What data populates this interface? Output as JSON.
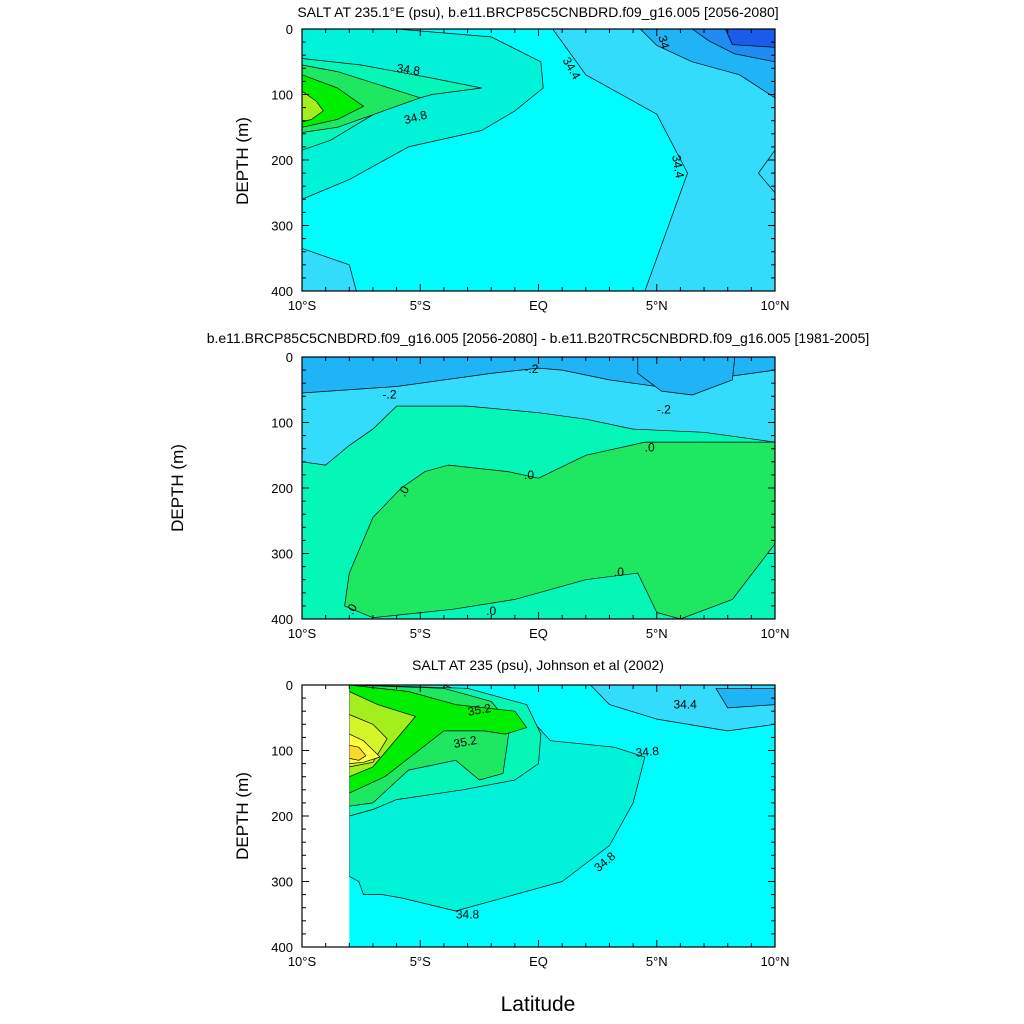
{
  "figure": {
    "shared_xlabel": "Latitude"
  },
  "colors": {
    "white_mask": "#ffffff",
    "deep_blue": "#1a5bea",
    "blue": "#1e8cf0",
    "sky": "#1fb4f5",
    "light_cyan": "#33dcfb",
    "cyan": "#00fdfd",
    "aqua": "#00f3d8",
    "mint": "#05f7b8",
    "green": "#1ee861",
    "bright_green": "#00ef00",
    "lime": "#a3ee1d",
    "yellow_green": "#d4f52a",
    "yellow": "#ffff3a",
    "gold": "#fbd928",
    "contour_line": "#000000"
  },
  "chart_data": [
    {
      "type": "contour",
      "title": "SALT AT 235.1°E (psu), b.e11.BRCP85C5CNBDRD.f09_g16.005 [2056-2080]",
      "xlabel": "",
      "ylabel": "DEPTH (m)",
      "xlim": [
        -10,
        10
      ],
      "ylim": [
        400,
        0
      ],
      "x_ticks": [
        -10,
        -5,
        0,
        5,
        10
      ],
      "x_tick_labels": [
        "10°S",
        "5°S",
        "EQ",
        "5°N",
        "10°N"
      ],
      "y_ticks": [
        0,
        100,
        200,
        300,
        400
      ],
      "y_tick_labels": [
        "0",
        "100",
        "200",
        "300",
        "400"
      ],
      "background_level": "cyan",
      "regions": [
        {
          "level": "light_cyan",
          "points": [
            [
              0.6,
              0
            ],
            [
              10,
              0
            ],
            [
              10,
              400
            ],
            [
              4.5,
              400
            ],
            [
              6.3,
              220
            ],
            [
              5,
              130
            ],
            [
              2,
              70
            ]
          ]
        },
        {
          "level": "sky",
          "points": [
            [
              4.3,
              0
            ],
            [
              10,
              0
            ],
            [
              10,
              105
            ],
            [
              8.5,
              70
            ],
            [
              6.5,
              50
            ],
            [
              5,
              25
            ]
          ]
        },
        {
          "level": "blue",
          "points": [
            [
              6.5,
              0
            ],
            [
              10,
              0
            ],
            [
              10,
              50
            ],
            [
              8.3,
              38
            ],
            [
              7.2,
              18
            ]
          ]
        },
        {
          "level": "deep_blue",
          "points": [
            [
              7.9,
              0
            ],
            [
              10,
              0
            ],
            [
              10,
              28
            ],
            [
              8.2,
              24
            ]
          ]
        },
        {
          "level": "light_cyan",
          "points": [
            [
              -10,
              335
            ],
            [
              -8,
              360
            ],
            [
              -7.7,
              400
            ],
            [
              -10,
              400
            ]
          ]
        },
        {
          "level": "light_cyan",
          "points": [
            [
              10,
              185
            ],
            [
              9.3,
              220
            ],
            [
              10,
              250
            ]
          ]
        },
        {
          "level": "aqua",
          "points": [
            [
              -10,
              0
            ],
            [
              -6,
              0
            ],
            [
              -2,
              12
            ],
            [
              0.1,
              50
            ],
            [
              0.2,
              90
            ],
            [
              -1,
              125
            ],
            [
              -2.4,
              155
            ],
            [
              -5.5,
              180
            ],
            [
              -8,
              230
            ],
            [
              -10,
              260
            ]
          ]
        },
        {
          "level": "mint",
          "points": [
            [
              -10,
              45
            ],
            [
              -7.5,
              55
            ],
            [
              -4.5,
              75
            ],
            [
              -2.4,
              90
            ],
            [
              -4.5,
              100
            ],
            [
              -6.5,
              120
            ],
            [
              -8.8,
              170
            ],
            [
              -10,
              185
            ]
          ]
        },
        {
          "level": "green",
          "points": [
            [
              -10,
              55
            ],
            [
              -8.5,
              65
            ],
            [
              -5,
              105
            ],
            [
              -8.5,
              150
            ],
            [
              -10,
              158
            ]
          ]
        },
        {
          "level": "bright_green",
          "points": [
            [
              -10,
              70
            ],
            [
              -8.5,
              90
            ],
            [
              -7.4,
              118
            ],
            [
              -8.5,
              138
            ],
            [
              -10,
              150
            ]
          ]
        },
        {
          "level": "lime",
          "points": [
            [
              -10,
              95
            ],
            [
              -9.4,
              110
            ],
            [
              -9.1,
              125
            ],
            [
              -9.6,
              138
            ],
            [
              -10,
              142
            ]
          ]
        }
      ],
      "contour_labels": [
        {
          "text": "34.8",
          "x": -5.5,
          "y": 62,
          "angle": 8
        },
        {
          "text": "34.8",
          "x": -5.2,
          "y": 135,
          "angle": -15
        },
        {
          "text": "34.4",
          "x": 1.4,
          "y": 60,
          "angle": 60
        },
        {
          "text": "34",
          "x": 5.3,
          "y": 20,
          "angle": 75
        },
        {
          "text": "34.4",
          "x": 5.9,
          "y": 210,
          "angle": 80
        }
      ]
    },
    {
      "type": "contour",
      "title": "b.e11.BRCP85C5CNBDRD.f09_g16.005 [2056-2080] - b.e11.B20TRC5CNBDRD.f09_g16.005 [1981-2005]",
      "xlabel": "",
      "ylabel": "DEPTH (m)",
      "xlim": [
        -10,
        10
      ],
      "ylim": [
        400,
        0
      ],
      "x_ticks": [
        -10,
        -5,
        0,
        5,
        10
      ],
      "x_tick_labels": [
        "10°S",
        "5°S",
        "EQ",
        "5°N",
        "10°N"
      ],
      "y_ticks": [
        0,
        100,
        200,
        300,
        400
      ],
      "y_tick_labels": [
        "0",
        "100",
        "200",
        "300",
        "400"
      ],
      "background_level": "mint",
      "regions": [
        {
          "level": "light_cyan",
          "points": [
            [
              -10,
              0
            ],
            [
              10,
              0
            ],
            [
              10,
              130
            ],
            [
              7,
              115
            ],
            [
              4,
              110
            ],
            [
              2,
              95
            ],
            [
              0,
              85
            ],
            [
              -3,
              75
            ],
            [
              -6,
              75
            ],
            [
              -7,
              110
            ],
            [
              -8,
              135
            ],
            [
              -9,
              165
            ],
            [
              -10,
              160
            ]
          ]
        },
        {
          "level": "sky",
          "points": [
            [
              -10,
              0
            ],
            [
              10,
              0
            ],
            [
              10,
              20
            ],
            [
              5,
              45
            ],
            [
              3,
              35
            ],
            [
              1,
              20
            ],
            [
              0,
              17
            ],
            [
              -2,
              25
            ],
            [
              -6,
              45
            ],
            [
              -10,
              55
            ]
          ]
        },
        {
          "level": "sky",
          "points": [
            [
              4.2,
              0
            ],
            [
              8.3,
              0
            ],
            [
              8.2,
              35
            ],
            [
              6.5,
              58
            ],
            [
              5.2,
              52
            ],
            [
              4.2,
              25
            ]
          ]
        },
        {
          "level": "green",
          "points": [
            [
              -4.8,
              175
            ],
            [
              -3.8,
              165
            ],
            [
              -1.3,
              175
            ],
            [
              0,
              185
            ],
            [
              2,
              150
            ],
            [
              4.5,
              130
            ],
            [
              7.5,
              130
            ],
            [
              10,
              130
            ],
            [
              10,
              285
            ],
            [
              8.2,
              370
            ],
            [
              6,
              400
            ],
            [
              5,
              390
            ],
            [
              4.2,
              330
            ],
            [
              2,
              340
            ],
            [
              -1,
              370
            ],
            [
              -3.6,
              385
            ],
            [
              -7,
              398
            ],
            [
              -8.2,
              380
            ],
            [
              -8,
              330
            ],
            [
              -7,
              245
            ],
            [
              -5.8,
              200
            ]
          ]
        }
      ],
      "contour_labels": [
        {
          "text": "-.2",
          "x": -6.3,
          "y": 57,
          "angle": 0
        },
        {
          "text": "-.2",
          "x": -0.3,
          "y": 18,
          "angle": 0
        },
        {
          "text": "-.2",
          "x": 5.3,
          "y": 80,
          "angle": 0
        },
        {
          "text": ".0",
          "x": 4.7,
          "y": 138,
          "angle": 0
        },
        {
          "text": ".0",
          "x": -0.4,
          "y": 180,
          "angle": 0
        },
        {
          "text": ".0",
          "x": -5.7,
          "y": 205,
          "angle": -60
        },
        {
          "text": ".0",
          "x": 3.4,
          "y": 328,
          "angle": 0
        },
        {
          "text": ".0",
          "x": -2,
          "y": 388,
          "angle": 0
        },
        {
          "text": ".0",
          "x": -7.9,
          "y": 385,
          "angle": -60
        }
      ]
    },
    {
      "type": "contour",
      "title": "SALT AT 235 (psu), Johnson et al (2002)",
      "xlabel": "",
      "ylabel": "DEPTH (m)",
      "xlim": [
        -10,
        10
      ],
      "ylim": [
        400,
        0
      ],
      "x_ticks": [
        -10,
        -5,
        0,
        5,
        10
      ],
      "x_tick_labels": [
        "10°S",
        "5°S",
        "EQ",
        "5°N",
        "10°N"
      ],
      "y_ticks": [
        0,
        100,
        200,
        300,
        400
      ],
      "y_tick_labels": [
        "0",
        "100",
        "200",
        "300",
        "400"
      ],
      "background_level": "cyan",
      "mask_x_below": -8,
      "regions": [
        {
          "level": "light_cyan",
          "points": [
            [
              2.2,
              0
            ],
            [
              10,
              0
            ],
            [
              10,
              60
            ],
            [
              8,
              70
            ],
            [
              5,
              52
            ],
            [
              3,
              30
            ]
          ]
        },
        {
          "level": "sky",
          "points": [
            [
              7.5,
              5
            ],
            [
              10,
              5
            ],
            [
              10,
              30
            ],
            [
              8,
              35
            ]
          ]
        },
        {
          "level": "aqua",
          "points": [
            [
              -8,
              0
            ],
            [
              -4,
              0
            ],
            [
              -1,
              40
            ],
            [
              0,
              65
            ],
            [
              0.5,
              85
            ],
            [
              3.2,
              95
            ],
            [
              4.5,
              110
            ],
            [
              4,
              180
            ],
            [
              3,
              245
            ],
            [
              1,
              300
            ],
            [
              -1.5,
              325
            ],
            [
              -3.5,
              345
            ],
            [
              -5.8,
              325
            ],
            [
              -6.6,
              320
            ],
            [
              -7.4,
              320
            ],
            [
              -7.6,
              300
            ],
            [
              -8,
              292
            ]
          ]
        },
        {
          "level": "mint",
          "points": [
            [
              -8,
              0
            ],
            [
              -3,
              5
            ],
            [
              -0.5,
              30
            ],
            [
              0.1,
              75
            ],
            [
              0,
              120
            ],
            [
              -1,
              145
            ],
            [
              -3.2,
              160
            ],
            [
              -6,
              175
            ],
            [
              -7,
              190
            ],
            [
              -8,
              200
            ]
          ]
        },
        {
          "level": "green",
          "points": [
            [
              -8,
              0
            ],
            [
              -4,
              5
            ],
            [
              -2,
              25
            ],
            [
              -1.2,
              60
            ],
            [
              -1.5,
              135
            ],
            [
              -2.5,
              145
            ],
            [
              -3.5,
              115
            ],
            [
              -5.5,
              130
            ],
            [
              -7,
              180
            ],
            [
              -8,
              185
            ]
          ]
        },
        {
          "level": "bright_green",
          "points": [
            [
              -8,
              0
            ],
            [
              -5.5,
              10
            ],
            [
              -3.5,
              30
            ],
            [
              -1,
              40
            ],
            [
              -0.5,
              65
            ],
            [
              -1.4,
              75
            ],
            [
              -2.3,
              70
            ],
            [
              -4,
              70
            ],
            [
              -6.5,
              140
            ],
            [
              -8,
              165
            ]
          ]
        },
        {
          "level": "lime",
          "points": [
            [
              -8,
              10
            ],
            [
              -6.8,
              30
            ],
            [
              -5.2,
              48
            ],
            [
              -5.6,
              65
            ],
            [
              -7,
              125
            ],
            [
              -8,
              140
            ]
          ]
        },
        {
          "level": "yellow_green",
          "points": [
            [
              -8,
              45
            ],
            [
              -7,
              60
            ],
            [
              -6.4,
              82
            ],
            [
              -7,
              118
            ],
            [
              -8,
              125
            ]
          ]
        },
        {
          "level": "yellow",
          "points": [
            [
              -8,
              75
            ],
            [
              -7.4,
              85
            ],
            [
              -6.7,
              110
            ],
            [
              -7.4,
              118
            ],
            [
              -8,
              120
            ]
          ]
        },
        {
          "level": "gold",
          "points": [
            [
              -8,
              92
            ],
            [
              -7.6,
              95
            ],
            [
              -7.3,
              108
            ],
            [
              -7.6,
              115
            ],
            [
              -8,
              112
            ]
          ]
        }
      ],
      "contour_labels": [
        {
          "text": "35.2",
          "x": -2.5,
          "y": 38,
          "angle": -10
        },
        {
          "text": "35.2",
          "x": -3.1,
          "y": 87,
          "angle": -10
        },
        {
          "text": "34.4",
          "x": 6.2,
          "y": 30,
          "angle": 0
        },
        {
          "text": "34.8",
          "x": 4.6,
          "y": 102,
          "angle": -5
        },
        {
          "text": "34.8",
          "x": 2.8,
          "y": 270,
          "angle": -40
        },
        {
          "text": "34.8",
          "x": -3,
          "y": 350,
          "angle": 0
        }
      ]
    }
  ]
}
